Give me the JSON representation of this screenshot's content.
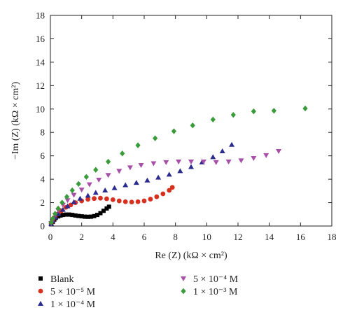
{
  "chart_data": {
    "type": "scatter",
    "title": "",
    "xlabel": "Re (Z) (kΩ × cm²)",
    "ylabel": "−Im (Z) (kΩ × cm²)",
    "xlim": [
      0,
      18
    ],
    "ylim": [
      0,
      18
    ],
    "xticks": [
      "0",
      "2",
      "4",
      "6",
      "8",
      "10",
      "12",
      "14",
      "16",
      "18"
    ],
    "yticks": [
      "0",
      "2",
      "4",
      "6",
      "8",
      "10",
      "12",
      "14",
      "16",
      "18"
    ],
    "grid": false,
    "legend_position": "bottom",
    "series": [
      {
        "name": "Blank",
        "marker": "square",
        "color": "#000000",
        "x": [
          0.05,
          0.15,
          0.25,
          0.35,
          0.5,
          0.65,
          0.8,
          1.0,
          1.2,
          1.4,
          1.6,
          1.8,
          2.0,
          2.2,
          2.4,
          2.6,
          2.8,
          3.0,
          3.2,
          3.4,
          3.6,
          3.75
        ],
        "y": [
          0.15,
          0.35,
          0.55,
          0.7,
          0.82,
          0.9,
          0.95,
          0.98,
          0.98,
          0.95,
          0.9,
          0.86,
          0.83,
          0.8,
          0.79,
          0.8,
          0.85,
          0.95,
          1.1,
          1.3,
          1.5,
          1.65
        ]
      },
      {
        "name": "5 × 10⁻⁵ M",
        "marker": "circle",
        "color": "#d7301f",
        "x": [
          0.05,
          0.15,
          0.3,
          0.5,
          0.7,
          1.0,
          1.3,
          1.6,
          2.0,
          2.4,
          2.8,
          3.2,
          3.6,
          4.0,
          4.4,
          4.8,
          5.2,
          5.6,
          6.0,
          6.4,
          6.8,
          7.2,
          7.6,
          7.8
        ],
        "y": [
          0.2,
          0.45,
          0.75,
          1.05,
          1.3,
          1.6,
          1.8,
          2.0,
          2.15,
          2.28,
          2.35,
          2.38,
          2.33,
          2.25,
          2.15,
          2.08,
          2.05,
          2.08,
          2.15,
          2.3,
          2.5,
          2.75,
          3.05,
          3.3
        ]
      },
      {
        "name": "1 × 10⁻⁴ M",
        "marker": "triangle-up",
        "color": "#2b2c8f",
        "x": [
          0.05,
          0.15,
          0.3,
          0.5,
          0.8,
          1.1,
          1.5,
          1.9,
          2.4,
          2.9,
          3.5,
          4.1,
          4.8,
          5.5,
          6.2,
          6.9,
          7.6,
          8.3,
          9.0,
          9.7,
          10.4,
          11.0,
          11.6
        ],
        "y": [
          0.2,
          0.45,
          0.75,
          1.05,
          1.4,
          1.7,
          2.05,
          2.35,
          2.6,
          2.85,
          3.05,
          3.25,
          3.5,
          3.7,
          3.9,
          4.15,
          4.4,
          4.7,
          5.05,
          5.45,
          5.9,
          6.4,
          6.95
        ]
      },
      {
        "name": "5 × 10⁻⁴ M",
        "marker": "triangle-down",
        "color": "#a84fa8",
        "x": [
          0.05,
          0.15,
          0.3,
          0.5,
          0.8,
          1.1,
          1.5,
          2.0,
          2.5,
          3.1,
          3.7,
          4.4,
          5.1,
          5.8,
          6.6,
          7.4,
          8.2,
          9.0,
          9.8,
          10.6,
          11.4,
          12.2,
          13.0,
          13.8,
          14.6
        ],
        "y": [
          0.25,
          0.55,
          0.95,
          1.35,
          1.8,
          2.2,
          2.65,
          3.1,
          3.55,
          3.95,
          4.35,
          4.7,
          5.0,
          5.2,
          5.35,
          5.45,
          5.5,
          5.5,
          5.5,
          5.45,
          5.5,
          5.6,
          5.8,
          6.05,
          6.4
        ]
      },
      {
        "name": "1 × 10⁻³ M",
        "marker": "diamond",
        "color": "#3a9b3a",
        "x": [
          0.05,
          0.15,
          0.3,
          0.5,
          0.75,
          1.05,
          1.4,
          1.8,
          2.3,
          2.9,
          3.7,
          4.6,
          5.6,
          6.7,
          7.9,
          9.1,
          10.4,
          11.7,
          13.0,
          14.3,
          16.3
        ],
        "y": [
          0.3,
          0.65,
          1.05,
          1.5,
          2.0,
          2.5,
          3.05,
          3.6,
          4.2,
          4.8,
          5.5,
          6.2,
          6.9,
          7.5,
          8.1,
          8.6,
          9.1,
          9.5,
          9.8,
          9.85,
          10.05
        ]
      }
    ]
  }
}
